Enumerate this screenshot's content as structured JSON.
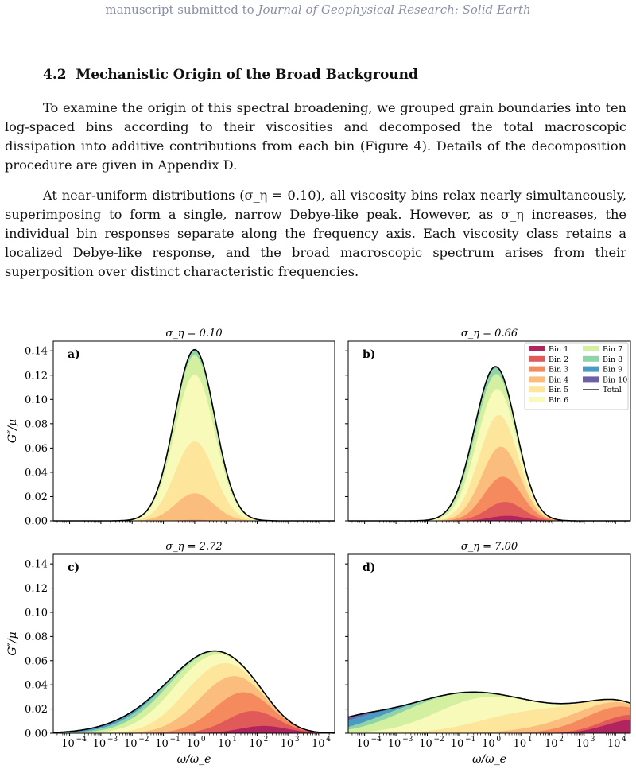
{
  "header": {
    "prefix": "manuscript submitted to ",
    "journal": "Journal of Geophysical Research: Solid Earth"
  },
  "section": {
    "number": "4.2",
    "title": "Mechanistic Origin of the Broad Background"
  },
  "paragraphs": [
    "To examine the origin of this spectral broadening, we grouped grain boundaries into ten log-spaced bins according to their viscosities and decomposed the total macroscopic dissipation into additive contributions from each bin (Figure 4). Details of the decomposition procedure are given in Appendix D.",
    "At near-uniform distributions (σ_η = 0.10), all viscosity bins relax nearly simultaneously, superimposing to form a single, narrow Debye-like peak. However, as σ_η increases, the individual bin responses separate along the frequency axis. Each viscosity class retains a localized Debye-like response, and the broad macroscopic spectrum arises from their superposition over distinct characteristic frequencies."
  ],
  "chart_data": [
    {
      "type": "area",
      "panel": "a)",
      "title": "σ_η = 0.10",
      "sigma": 0.1,
      "ylabel": "G″/μ",
      "xlabel": "",
      "xscale": "log",
      "xlim": [
        3e-05,
        30000
      ],
      "ylim": [
        0,
        0.148
      ],
      "peak_total": 0.141,
      "peak_x": 1.0
    },
    {
      "type": "area",
      "panel": "b)",
      "title": "σ_η = 0.66",
      "sigma": 0.66,
      "ylabel": "",
      "xlabel": "",
      "xscale": "log",
      "xlim": [
        3e-05,
        30000
      ],
      "ylim": [
        0,
        0.148
      ],
      "peak_total": 0.127,
      "peak_x": 1.2
    },
    {
      "type": "area",
      "panel": "c)",
      "title": "σ_η = 2.72",
      "sigma": 2.72,
      "ylabel": "G″/μ",
      "xlabel": "ω/ω_e",
      "xscale": "log",
      "xlim": [
        3e-05,
        30000
      ],
      "ylim": [
        0,
        0.148
      ],
      "peak_total": 0.068,
      "peak_x": 1.0
    },
    {
      "type": "area",
      "panel": "d)",
      "title": "σ_η = 7.00",
      "sigma": 7.0,
      "ylabel": "",
      "xlabel": "ω/ω_e",
      "xscale": "log",
      "xlim": [
        3e-05,
        30000
      ],
      "ylim": [
        0,
        0.148
      ],
      "peak_total": 0.034,
      "peak_x": 0.15
    }
  ],
  "y_ticks": [
    "0.00",
    "0.02",
    "0.04",
    "0.06",
    "0.08",
    "0.10",
    "0.12",
    "0.14"
  ],
  "x_ticks": [
    "10",
    "10",
    "10",
    "10",
    "10",
    "10",
    "10",
    "10",
    "10"
  ],
  "x_tick_exps": [
    "−4",
    "−3",
    "−2",
    "−1",
    "0",
    "1",
    "2",
    "3",
    "4"
  ],
  "legend": [
    {
      "label": "Bin 1",
      "color": "#b2245e"
    },
    {
      "label": "Bin 2",
      "color": "#e05a5a"
    },
    {
      "label": "Bin 3",
      "color": "#f58a5e"
    },
    {
      "label": "Bin 4",
      "color": "#fbbd7e"
    },
    {
      "label": "Bin 5",
      "color": "#fde59c"
    },
    {
      "label": "Bin 6",
      "color": "#f7fab9"
    },
    {
      "label": "Bin 7",
      "color": "#d3efa0"
    },
    {
      "label": "Bin 8",
      "color": "#8fd4a8"
    },
    {
      "label": "Bin 9",
      "color": "#4a9bc4"
    },
    {
      "label": "Bin 10",
      "color": "#6d5fa8"
    },
    {
      "label": "Total",
      "color": "#000000"
    }
  ]
}
